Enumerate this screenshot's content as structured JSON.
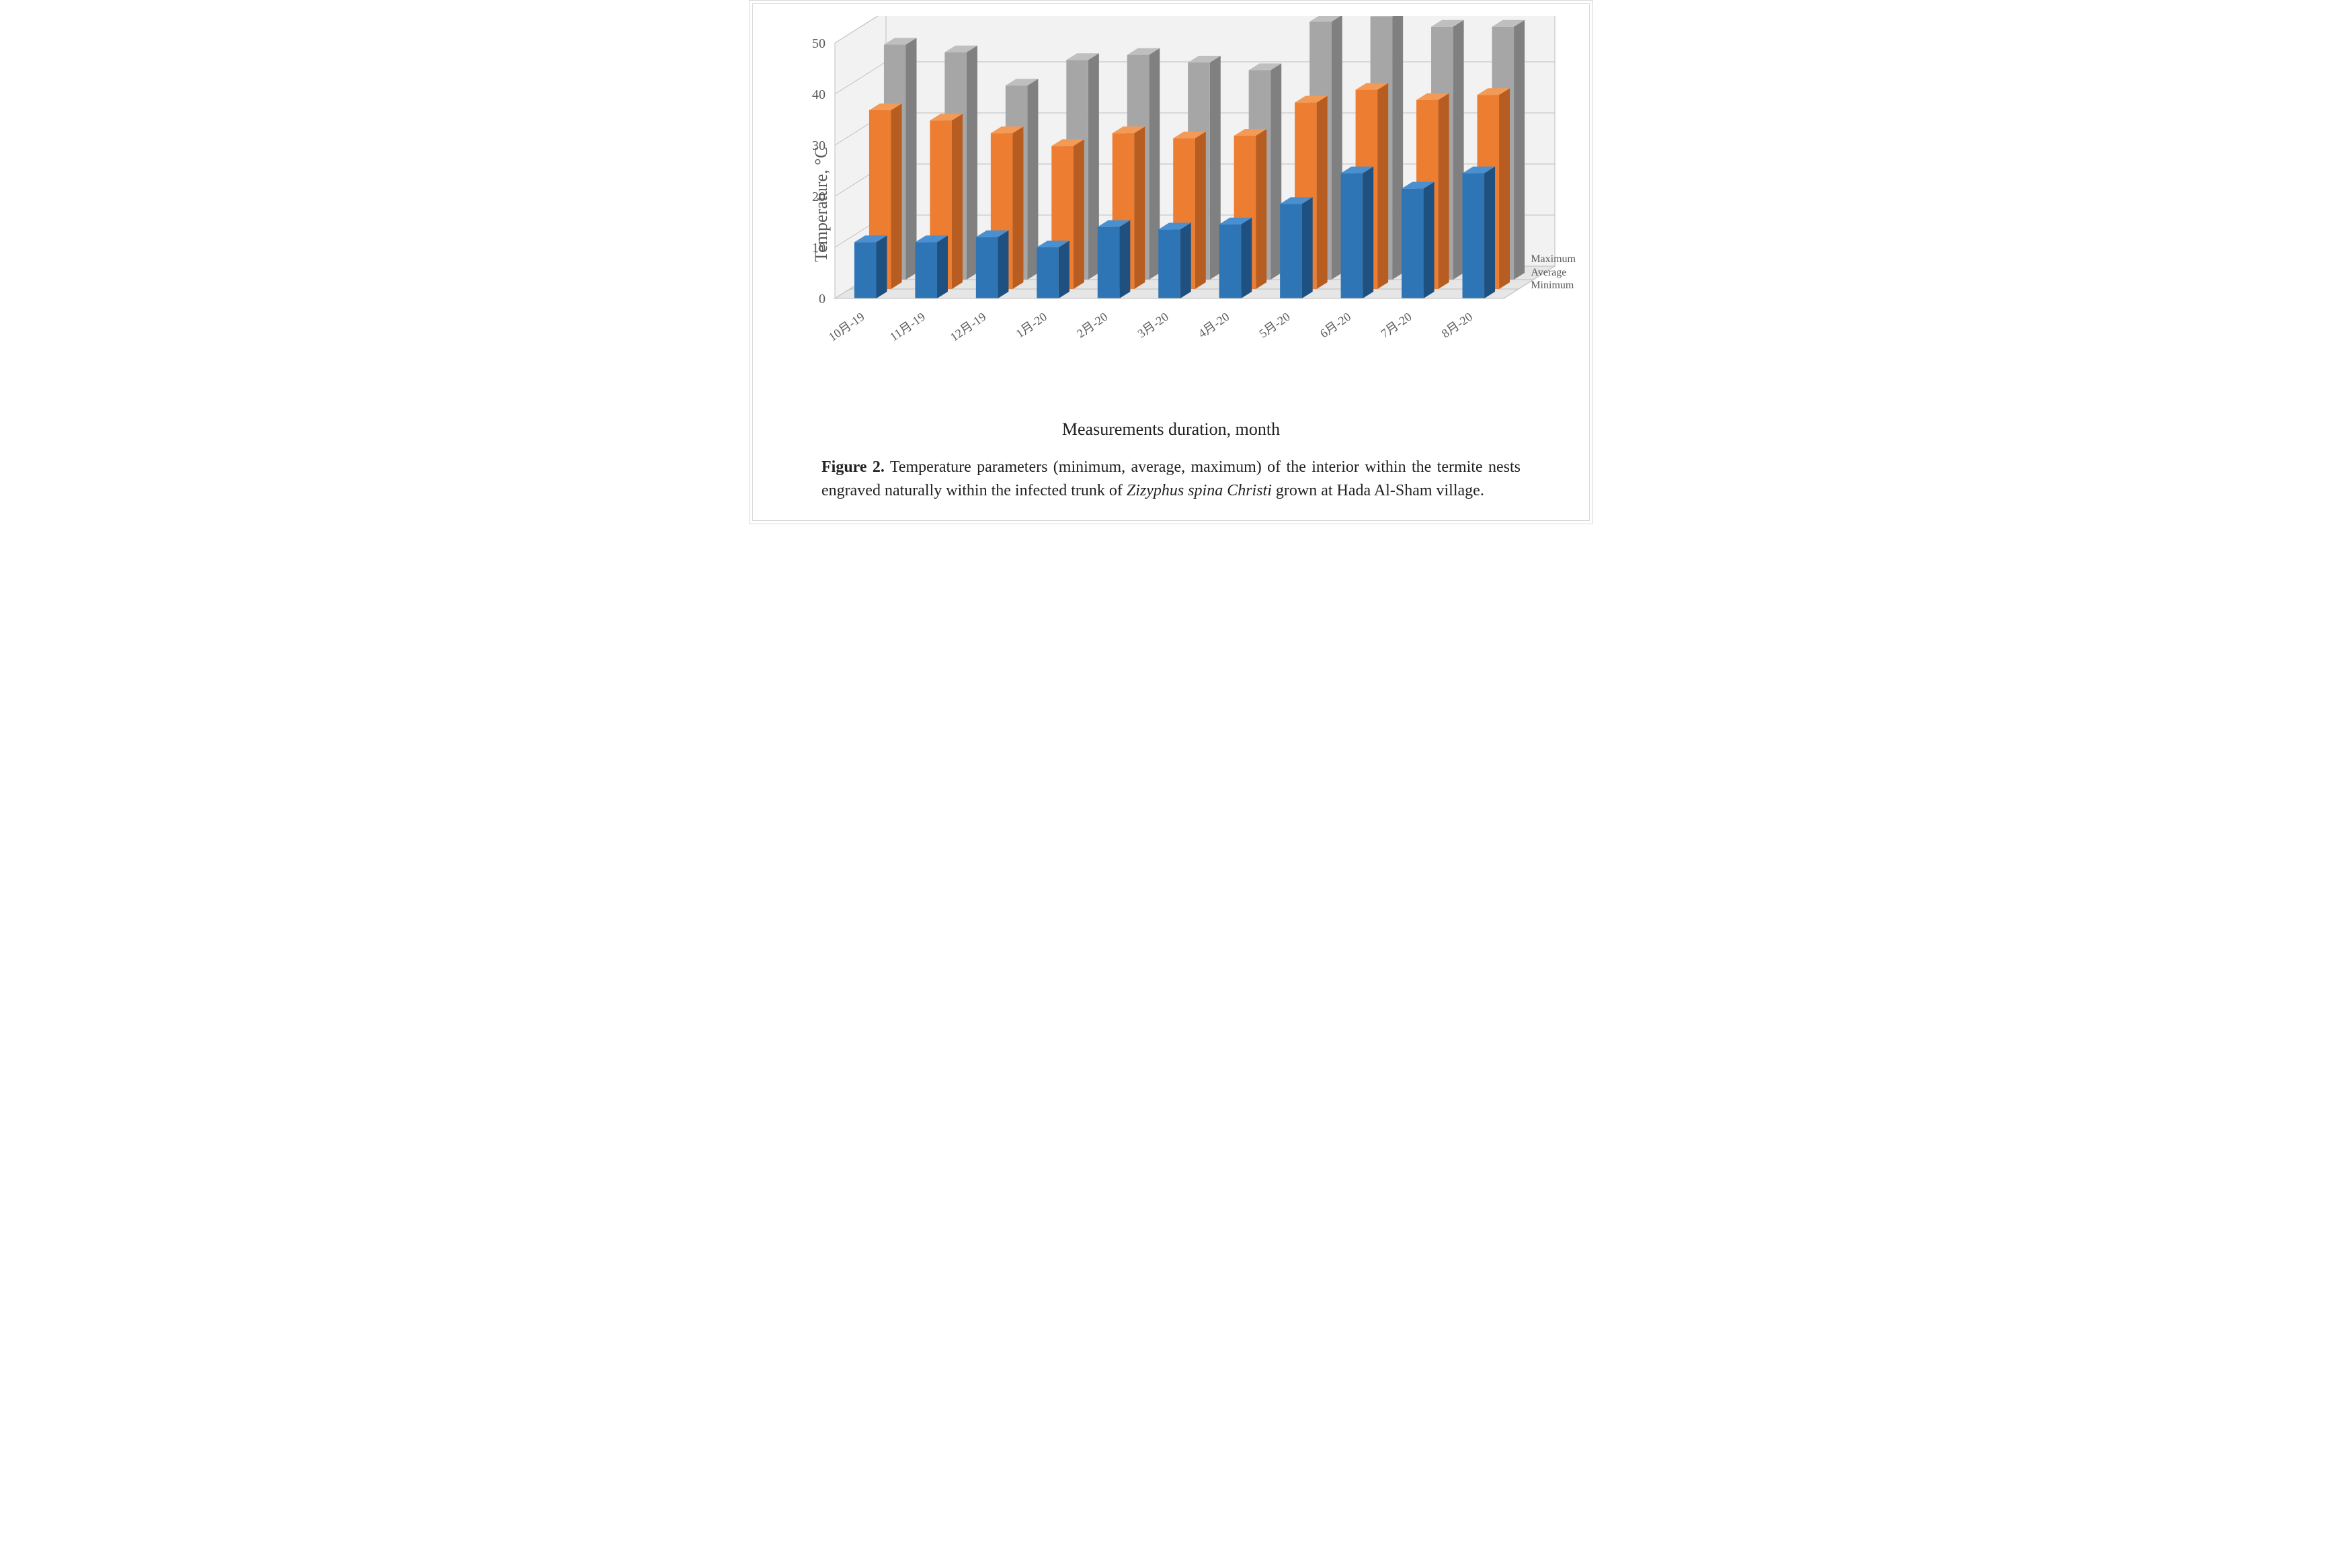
{
  "chart": {
    "type": "bar3d",
    "background_color": "#ffffff",
    "border_color": "#d9d9d9",
    "floor_color": "#e6e6e6",
    "floor_stroke": "#bfbfbf",
    "backwall_color": "#f2f2f2",
    "grid_color": "#bfbfbf",
    "ylabel": "Temperature, °C",
    "xlabel": "Measurements duration, month",
    "label_fontsize": 26,
    "tick_fontcolor": "#595959",
    "xtick_fontsize": 18,
    "ytick_fontsize": 20,
    "ylim": [
      0,
      50
    ],
    "ytick_step": 10,
    "categories": [
      "10月-19",
      "11月-19",
      "12月-19",
      "1月-20",
      "2月-20",
      "3月-20",
      "4月-20",
      "5月-20",
      "6月-20",
      "7月-20",
      "8月-20"
    ],
    "depth_labels": [
      "Minimum",
      "Average",
      "Maximum"
    ],
    "series": [
      {
        "name": "Minimum",
        "color": "#2e75b6",
        "color_side": "#1f5180",
        "color_top": "#4a90d0",
        "values": [
          11,
          11,
          12,
          10,
          14,
          13.5,
          14.5,
          18.5,
          24.5,
          21.5,
          24.5
        ]
      },
      {
        "name": "Average",
        "color": "#ed7d31",
        "color_side": "#b85d21",
        "color_top": "#f29a56",
        "values": [
          35,
          33,
          30.5,
          28,
          30.5,
          29.5,
          30,
          36.5,
          39,
          37,
          38
        ]
      },
      {
        "name": "Maximum",
        "color": "#a6a6a6",
        "color_side": "#808080",
        "color_top": "#bfbfbf",
        "values": [
          46,
          44.5,
          38,
          43,
          44,
          42.5,
          41,
          50.5,
          51.5,
          49.5,
          49.5
        ]
      }
    ],
    "bar_width_ratio": 0.36,
    "depth_dx": 16,
    "depth_dy": -10,
    "series_gap_dx": 22,
    "series_gap_dy": -14
  },
  "caption": {
    "prefix_bold": "Figure 2.",
    "text_pre": " Temperature parameters (minimum, average, maximum) of the interior within the termite nests engraved naturally within the infected trunk of ",
    "italic": "Zizyphus spina Christi",
    "text_post": " grown at Hada Al-Sham village."
  }
}
